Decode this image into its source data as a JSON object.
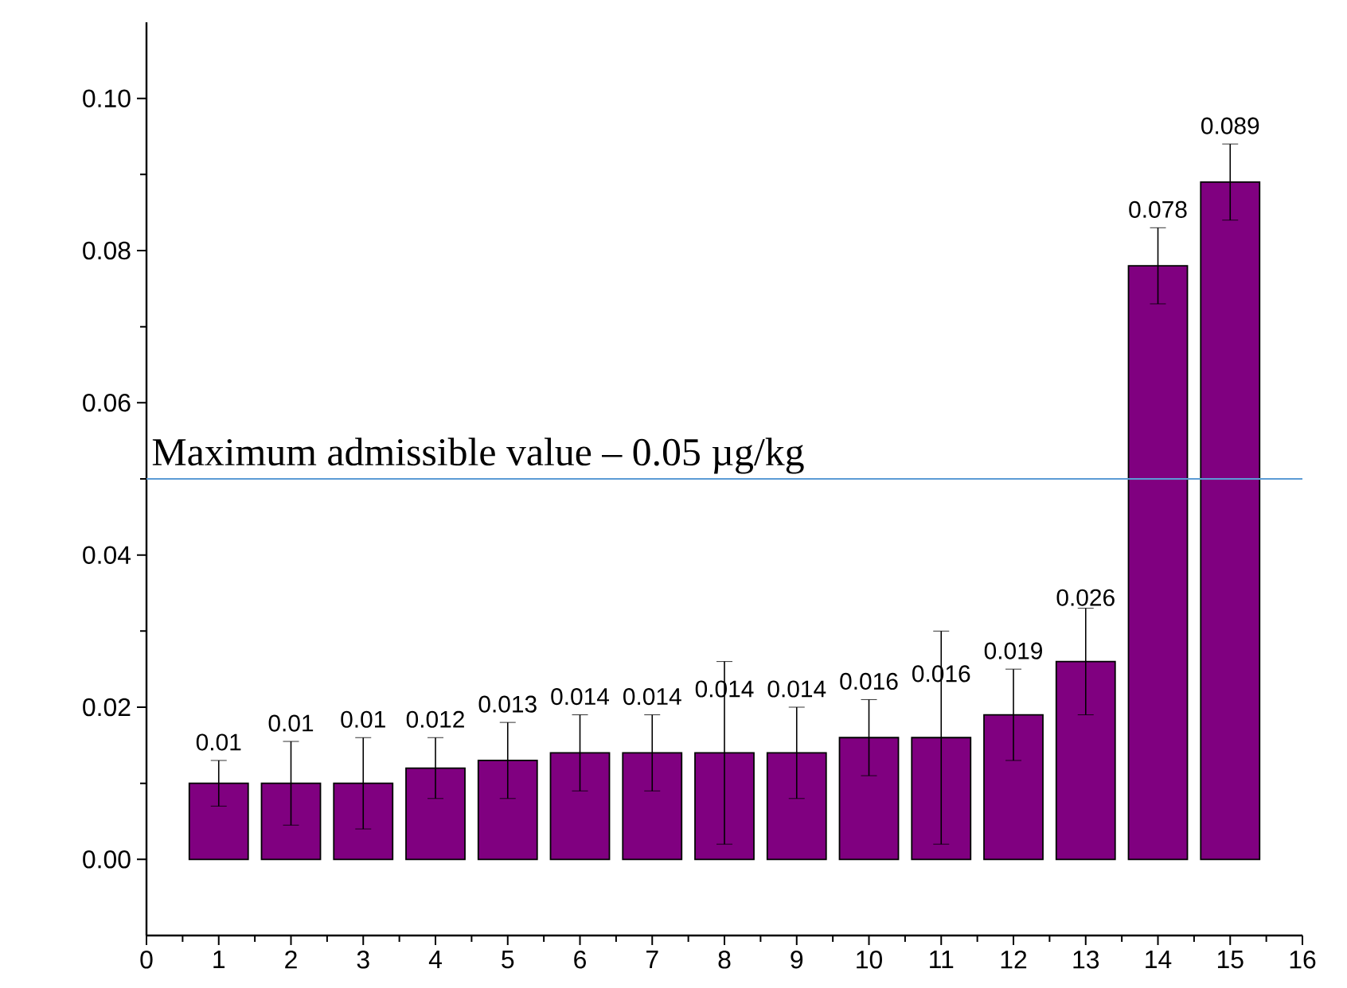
{
  "chart_data": {
    "type": "bar",
    "x": [
      1,
      2,
      3,
      4,
      5,
      6,
      7,
      8,
      9,
      10,
      11,
      12,
      13,
      14,
      15
    ],
    "values": [
      0.01,
      0.01,
      0.01,
      0.012,
      0.013,
      0.014,
      0.014,
      0.014,
      0.014,
      0.016,
      0.016,
      0.019,
      0.026,
      0.078,
      0.089
    ],
    "errors": [
      0.003,
      0.0055,
      0.006,
      0.004,
      0.005,
      0.005,
      0.005,
      0.012,
      0.006,
      0.005,
      0.014,
      0.006,
      0.007,
      0.005,
      0.005
    ],
    "color": "#800080",
    "data_labels": true,
    "xlim": [
      0,
      16
    ],
    "xticks": [
      0,
      1,
      2,
      3,
      4,
      5,
      6,
      7,
      8,
      9,
      10,
      11,
      12,
      13,
      14,
      15,
      16
    ],
    "ylim": [
      -0.01,
      0.11
    ],
    "yticks": [
      {
        "value": 0,
        "label": "0.00"
      },
      {
        "value": 0.02,
        "label": "0.02"
      },
      {
        "value": 0.04,
        "label": "0.04"
      },
      {
        "value": 0.06,
        "label": "0.06"
      },
      {
        "value": 0.08,
        "label": "0.08"
      },
      {
        "value": 0.1,
        "label": "0.10"
      }
    ],
    "ref_lines": [
      {
        "axis": "y",
        "value": 0.05,
        "label": "Maximum admissible value – 0.05 µg/kg",
        "color": "#5b9bd5"
      }
    ]
  }
}
